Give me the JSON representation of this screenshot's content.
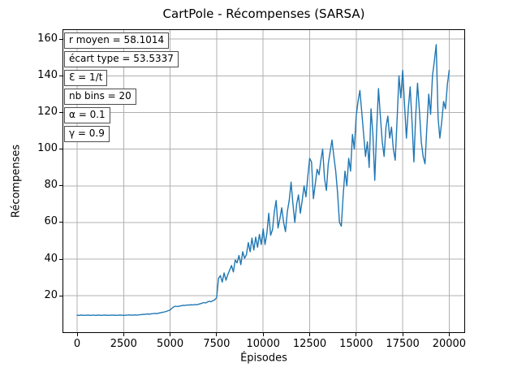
{
  "chart_data": {
    "type": "line",
    "title": "CartPole - Récompenses (SARSA)",
    "xlabel": "Épisodes",
    "ylabel": "Récompenses",
    "x_ticks": [
      0,
      2500,
      5000,
      7500,
      10000,
      12500,
      15000,
      17500,
      20000
    ],
    "y_ticks": [
      20,
      40,
      60,
      80,
      100,
      120,
      140,
      160
    ],
    "xlim": [
      -785,
      20855
    ],
    "ylim": [
      -0.3,
      165.4
    ],
    "grid": true,
    "legend_position": "none",
    "line_color": "#1f77b4",
    "grid_color": "#b0b0b0",
    "spine_color": "#000000",
    "annotations": [
      "r moyen = 58.1014",
      "écart type = 53.5337",
      "Ɛ = 1/t",
      "nb bins = 20",
      "α = 0.1",
      "γ = 0.9"
    ],
    "series": [
      {
        "x_start": 0,
        "x_step": 100,
        "values": [
          9.4,
          9.3,
          9.5,
          9.4,
          9.3,
          9.4,
          9.5,
          9.3,
          9.4,
          9.4,
          9.3,
          9.5,
          9.4,
          9.3,
          9.4,
          9.5,
          9.4,
          9.3,
          9.4,
          9.4,
          9.5,
          9.3,
          9.4,
          9.5,
          9.4,
          9.3,
          9.4,
          9.5,
          9.6,
          9.5,
          9.4,
          9.6,
          9.5,
          9.6,
          9.7,
          9.8,
          9.9,
          10.0,
          10.1,
          10.0,
          10.2,
          10.3,
          10.4,
          10.3,
          10.6,
          10.8,
          11.0,
          11.2,
          11.5,
          11.9,
          12.3,
          13.2,
          14.0,
          14.3,
          14.1,
          14.4,
          14.6,
          14.8,
          14.7,
          15.0,
          14.9,
          15.1,
          15.0,
          15.2,
          15.1,
          15.3,
          15.6,
          15.9,
          16.3,
          16.1,
          16.6,
          17.0,
          16.8,
          17.3,
          17.8,
          19.0,
          29.5,
          31.0,
          27.5,
          32.5,
          28.5,
          31.5,
          34.0,
          36.5,
          33.0,
          39.5,
          38.0,
          42.0,
          37.0,
          44.0,
          40.5,
          42.5,
          49.0,
          44.0,
          51.5,
          45.0,
          52.0,
          46.5,
          53.5,
          48.0,
          56.5,
          48.0,
          54.0,
          65.0,
          53.0,
          56.0,
          66.0,
          72.0,
          57.0,
          62.0,
          68.0,
          60.0,
          55.0,
          66.0,
          72.0,
          82.0,
          70.0,
          60.0,
          70.0,
          75.0,
          65.0,
          72.0,
          80.0,
          74.0,
          85.0,
          95.0,
          93.0,
          73.0,
          81.0,
          89.0,
          86.0,
          94.0,
          100.0,
          84.0,
          77.5,
          92.0,
          98.5,
          105.0,
          96.0,
          88.0,
          76.0,
          60.0,
          58.0,
          75.0,
          88.0,
          80.0,
          95.0,
          88.0,
          108.0,
          100.0,
          118.0,
          126.0,
          132.0,
          120.0,
          108.0,
          96.0,
          104.0,
          90.0,
          122.0,
          108.0,
          83.0,
          110.0,
          133.0,
          118.0,
          104.0,
          96.0,
          112.0,
          118.0,
          106.0,
          112.0,
          100.0,
          94.0,
          116.0,
          140.0,
          128.0,
          143.0,
          124.0,
          106.0,
          122.0,
          134.0,
          115.0,
          93.0,
          118.0,
          136.0,
          121.0,
          104.0,
          96.0,
          92.0,
          112.0,
          130.0,
          119.0,
          140.0,
          148.0,
          157.0,
          117.0,
          106.0,
          115.0,
          126.0,
          122.0,
          135.0,
          143.0
        ]
      }
    ]
  }
}
